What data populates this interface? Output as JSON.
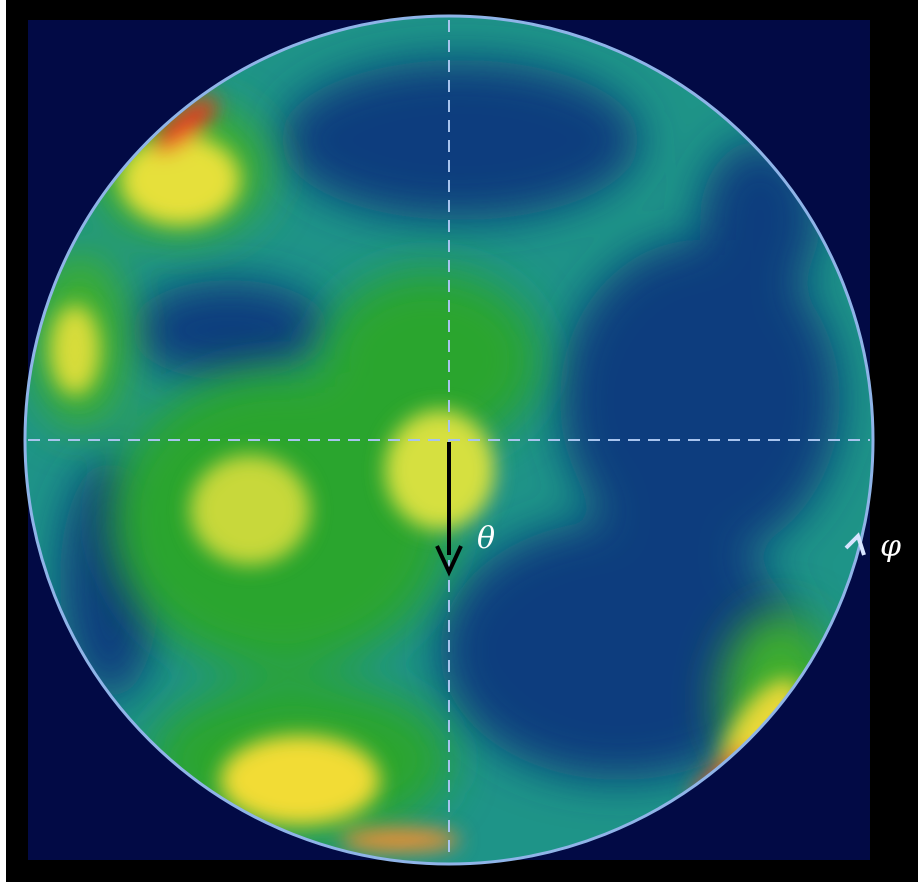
{
  "labels": {
    "theta": "θ",
    "phi": "φ"
  }
}
